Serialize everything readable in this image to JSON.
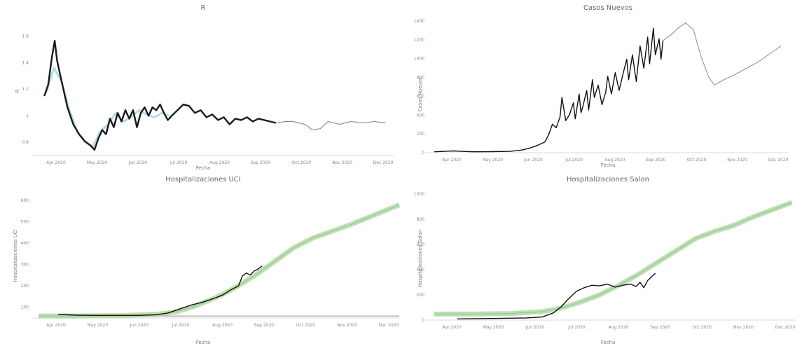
{
  "chart_data": [
    {
      "id": "r",
      "type": "line",
      "title": "R",
      "xlabel": "Fecha",
      "ylabel": "R",
      "x_ticks": [
        "Apr 2020",
        "May 2020",
        "Jun 2020",
        "Jul 2020",
        "Aug 2020",
        "Sep 2020",
        "Oct 2020",
        "Nov 2020",
        "Dec 2020"
      ],
      "y_ticks": [
        "0.8",
        "1",
        "1.2",
        "1.4",
        "1.6"
      ],
      "xlim": [
        0,
        9.2
      ],
      "ylim": [
        0.78,
        1.68
      ],
      "colors": {
        "observed": "#1a1a1a",
        "band": "#9ecfe0",
        "projection": "#9a6f9a"
      },
      "series": [
        {
          "role": "band",
          "values": [
            [
              0.2,
              1.22
            ],
            [
              0.4,
              1.4
            ],
            [
              0.6,
              1.3
            ],
            [
              0.8,
              1.1
            ],
            [
              1.0,
              0.95
            ],
            [
              1.2,
              0.88
            ],
            [
              1.4,
              0.84
            ],
            [
              1.6,
              0.95
            ],
            [
              1.8,
              1.0
            ],
            [
              2.0,
              1.08
            ],
            [
              2.2,
              1.02
            ],
            [
              2.4,
              1.05
            ],
            [
              2.6,
              1.1
            ],
            [
              2.8,
              1.07
            ],
            [
              3.0,
              1.05
            ],
            [
              3.2,
              1.08
            ],
            [
              3.4,
              1.06
            ]
          ]
        },
        {
          "role": "observed",
          "values": [
            [
              0.15,
              1.2
            ],
            [
              0.25,
              1.28
            ],
            [
              0.35,
              1.48
            ],
            [
              0.42,
              1.59
            ],
            [
              0.48,
              1.45
            ],
            [
              0.6,
              1.3
            ],
            [
              0.75,
              1.12
            ],
            [
              0.9,
              1.0
            ],
            [
              1.05,
              0.93
            ],
            [
              1.2,
              0.88
            ],
            [
              1.35,
              0.85
            ],
            [
              1.45,
              0.82
            ],
            [
              1.55,
              0.9
            ],
            [
              1.65,
              0.96
            ],
            [
              1.75,
              0.93
            ],
            [
              1.85,
              1.04
            ],
            [
              1.95,
              0.98
            ],
            [
              2.05,
              1.08
            ],
            [
              2.15,
              1.02
            ],
            [
              2.25,
              1.1
            ],
            [
              2.35,
              1.04
            ],
            [
              2.45,
              1.1
            ],
            [
              2.55,
              0.98
            ],
            [
              2.65,
              1.08
            ],
            [
              2.75,
              1.12
            ],
            [
              2.85,
              1.06
            ],
            [
              2.95,
              1.12
            ],
            [
              3.05,
              1.1
            ],
            [
              3.15,
              1.14
            ],
            [
              3.25,
              1.08
            ],
            [
              3.35,
              1.03
            ],
            [
              3.45,
              1.06
            ],
            [
              3.6,
              1.1
            ],
            [
              3.75,
              1.14
            ],
            [
              3.9,
              1.13
            ],
            [
              4.05,
              1.08
            ],
            [
              4.2,
              1.1
            ],
            [
              4.35,
              1.05
            ],
            [
              4.5,
              1.07
            ],
            [
              4.65,
              1.03
            ],
            [
              4.8,
              1.05
            ],
            [
              4.95,
              1.0
            ],
            [
              5.1,
              1.04
            ],
            [
              5.25,
              1.03
            ],
            [
              5.4,
              1.05
            ],
            [
              5.55,
              1.02
            ],
            [
              5.7,
              1.04
            ],
            [
              5.85,
              1.03
            ],
            [
              6.0,
              1.02
            ],
            [
              6.15,
              1.01
            ]
          ]
        },
        {
          "role": "projection",
          "values": [
            [
              6.15,
              1.01
            ],
            [
              6.4,
              1.02
            ],
            [
              6.6,
              1.02
            ],
            [
              6.9,
              1.0
            ],
            [
              7.1,
              0.96
            ],
            [
              7.3,
              0.97
            ],
            [
              7.5,
              1.02
            ],
            [
              7.8,
              1.0
            ],
            [
              8.1,
              1.02
            ],
            [
              8.4,
              1.01
            ],
            [
              8.7,
              1.02
            ],
            [
              9.0,
              1.01
            ]
          ]
        }
      ]
    },
    {
      "id": "casos",
      "type": "line",
      "title": "Casos Nuevos",
      "xlabel": "Fecha",
      "ylabel": "Casos Nuevos",
      "x_ticks": [
        "Apr 2020",
        "May 2020",
        "Jun 2020",
        "Jul 2020",
        "Aug 2020",
        "Sep 2020",
        "Oct 2020",
        "Nov 2020",
        "Dec 2020"
      ],
      "y_ticks": [
        "0",
        "200",
        "400",
        "600",
        "800",
        "1000",
        "1200",
        "1400"
      ],
      "xlim": [
        0,
        9.3
      ],
      "ylim": [
        0,
        1480
      ],
      "colors": {
        "observed": "#111111",
        "projection": "#8a8a8a"
      },
      "series": [
        {
          "role": "observed",
          "values": [
            [
              0,
              10
            ],
            [
              0.5,
              20
            ],
            [
              1.0,
              10
            ],
            [
              1.5,
              12
            ],
            [
              2.0,
              15
            ],
            [
              2.3,
              30
            ],
            [
              2.5,
              50
            ],
            [
              2.7,
              80
            ],
            [
              2.9,
              120
            ],
            [
              3.0,
              200
            ],
            [
              3.1,
              320
            ],
            [
              3.2,
              280
            ],
            [
              3.3,
              400
            ],
            [
              3.35,
              620
            ],
            [
              3.45,
              360
            ],
            [
              3.55,
              430
            ],
            [
              3.65,
              560
            ],
            [
              3.7,
              380
            ],
            [
              3.8,
              660
            ],
            [
              3.85,
              450
            ],
            [
              3.9,
              520
            ],
            [
              4.0,
              700
            ],
            [
              4.05,
              480
            ],
            [
              4.15,
              820
            ],
            [
              4.2,
              620
            ],
            [
              4.3,
              760
            ],
            [
              4.4,
              540
            ],
            [
              4.5,
              680
            ],
            [
              4.55,
              860
            ],
            [
              4.65,
              660
            ],
            [
              4.75,
              900
            ],
            [
              4.85,
              700
            ],
            [
              4.95,
              880
            ],
            [
              5.05,
              1050
            ],
            [
              5.1,
              820
            ],
            [
              5.2,
              1100
            ],
            [
              5.3,
              800
            ],
            [
              5.4,
              1200
            ],
            [
              5.5,
              950
            ],
            [
              5.6,
              1300
            ],
            [
              5.65,
              1000
            ],
            [
              5.75,
              1400
            ],
            [
              5.8,
              1100
            ],
            [
              5.9,
              1280
            ],
            [
              5.95,
              1050
            ],
            [
              6.0,
              1260
            ]
          ]
        },
        {
          "role": "projection",
          "values": [
            [
              6.0,
              1260
            ],
            [
              6.2,
              1320
            ],
            [
              6.4,
              1400
            ],
            [
              6.6,
              1460
            ],
            [
              6.8,
              1380
            ],
            [
              7.0,
              1080
            ],
            [
              7.2,
              850
            ],
            [
              7.35,
              760
            ],
            [
              7.6,
              820
            ],
            [
              7.9,
              880
            ],
            [
              8.2,
              950
            ],
            [
              8.5,
              1020
            ],
            [
              8.8,
              1110
            ],
            [
              9.1,
              1200
            ]
          ]
        }
      ]
    },
    {
      "id": "uci",
      "type": "line",
      "title": "Hospitalizaciones UCI",
      "xlabel": "Fecha",
      "ylabel": "Hospitalizaciones UCI",
      "x_ticks": [
        "Apr 2020",
        "May 2020",
        "Jun 2020",
        "Jul 2020",
        "Aug 2020",
        "Sep 2020",
        "Oct 2020",
        "Nov 2020",
        "Dec 2020"
      ],
      "y_ticks": [
        "100",
        "200",
        "300",
        "400",
        "500",
        "600"
      ],
      "xlim": [
        0,
        9.2
      ],
      "ylim": [
        0,
        620
      ],
      "colors": {
        "observed": "#111111",
        "band": "#a9d68a",
        "center": "#8fb8d8",
        "capacity": "#666666"
      },
      "series": [
        {
          "role": "capacity",
          "values": [
            [
              0,
              10
            ],
            [
              9.2,
              10
            ]
          ]
        },
        {
          "role": "band",
          "values": [
            [
              0,
              10
            ],
            [
              1,
              10
            ],
            [
              2,
              12
            ],
            [
              3,
              18
            ],
            [
              3.5,
              30
            ],
            [
              4,
              60
            ],
            [
              4.5,
              100
            ],
            [
              5,
              150
            ],
            [
              5.5,
              210
            ],
            [
              6,
              280
            ],
            [
              6.5,
              350
            ],
            [
              7,
              400
            ],
            [
              7.5,
              435
            ],
            [
              8,
              470
            ],
            [
              8.5,
              510
            ],
            [
              9.0,
              550
            ],
            [
              9.2,
              565
            ]
          ]
        },
        {
          "role": "observed",
          "values": [
            [
              0.5,
              18
            ],
            [
              1,
              14
            ],
            [
              1.5,
              13
            ],
            [
              2,
              13
            ],
            [
              2.5,
              13
            ],
            [
              3,
              16
            ],
            [
              3.3,
              25
            ],
            [
              3.6,
              45
            ],
            [
              3.9,
              65
            ],
            [
              4.2,
              80
            ],
            [
              4.5,
              100
            ],
            [
              4.7,
              115
            ],
            [
              4.9,
              140
            ],
            [
              5.1,
              160
            ],
            [
              5.2,
              210
            ],
            [
              5.3,
              225
            ],
            [
              5.4,
              215
            ],
            [
              5.5,
              235
            ],
            [
              5.6,
              245
            ],
            [
              5.7,
              260
            ]
          ]
        }
      ]
    },
    {
      "id": "salon",
      "type": "line",
      "title": "Hospitalizaciones Salon",
      "xlabel": "Fecha",
      "ylabel": "Hospitalizaciones Salon",
      "x_ticks": [
        "Apr 2020",
        "May 2020",
        "Jun 2020",
        "Jul 2020",
        "Aug 2020",
        "Sep 2020",
        "Oct 2020",
        "Nov 2020",
        "Dec 2020"
      ],
      "y_ticks": [
        "0",
        "200",
        "400",
        "600",
        "800",
        "1000"
      ],
      "xlim": [
        0,
        9.4
      ],
      "ylim": [
        0,
        1050
      ],
      "colors": {
        "observed": "#111111",
        "band": "#a9d68a",
        "center": "#8fb8d8"
      },
      "series": [
        {
          "role": "band",
          "values": [
            [
              0,
              50
            ],
            [
              1,
              50
            ],
            [
              2,
              55
            ],
            [
              2.8,
              70
            ],
            [
              3.3,
              100
            ],
            [
              3.8,
              150
            ],
            [
              4.3,
              210
            ],
            [
              4.8,
              290
            ],
            [
              5.3,
              380
            ],
            [
              5.8,
              480
            ],
            [
              6.3,
              580
            ],
            [
              6.8,
              680
            ],
            [
              7.3,
              740
            ],
            [
              7.8,
              790
            ],
            [
              8.3,
              860
            ],
            [
              8.8,
              920
            ],
            [
              9.3,
              980
            ]
          ]
        },
        {
          "role": "observed",
          "values": [
            [
              0.6,
              10
            ],
            [
              1.2,
              12
            ],
            [
              1.8,
              15
            ],
            [
              2.4,
              18
            ],
            [
              2.8,
              25
            ],
            [
              3.1,
              60
            ],
            [
              3.3,
              110
            ],
            [
              3.5,
              180
            ],
            [
              3.7,
              240
            ],
            [
              3.9,
              270
            ],
            [
              4.1,
              290
            ],
            [
              4.3,
              285
            ],
            [
              4.5,
              300
            ],
            [
              4.7,
              275
            ],
            [
              4.9,
              290
            ],
            [
              5.1,
              300
            ],
            [
              5.25,
              280
            ],
            [
              5.35,
              315
            ],
            [
              5.45,
              270
            ],
            [
              5.55,
              330
            ],
            [
              5.65,
              360
            ],
            [
              5.75,
              390
            ]
          ]
        }
      ]
    }
  ]
}
